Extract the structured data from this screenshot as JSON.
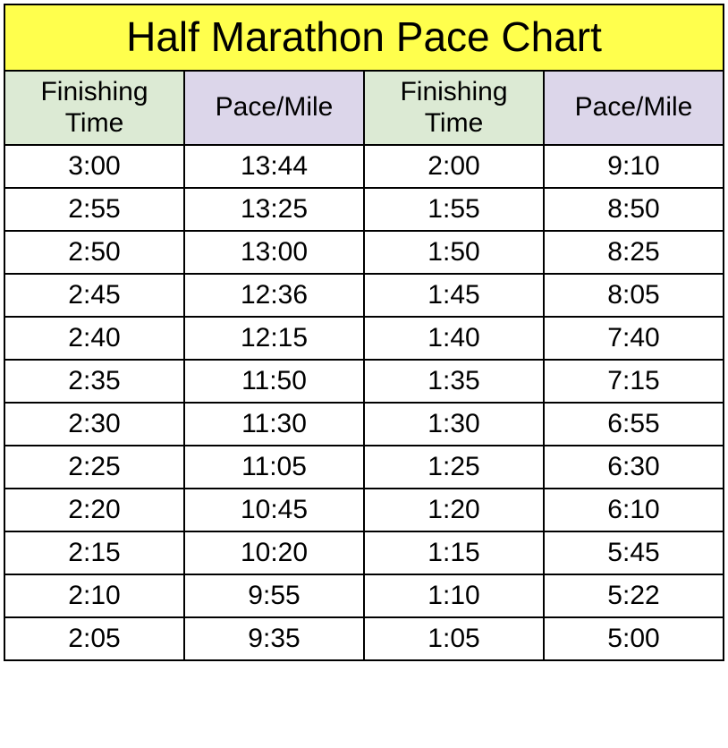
{
  "chart": {
    "type": "table",
    "title": "Half Marathon Pace Chart",
    "title_bg": "#ffff4d",
    "title_color": "#000000",
    "title_fontsize": 46,
    "border_color": "#000000",
    "background_color": "#ffffff",
    "header_fontsize": 30,
    "cell_fontsize": 30,
    "columns": [
      {
        "label": "Finishing\nTime",
        "bg": "#dcead4"
      },
      {
        "label": "Pace/Mile",
        "bg": "#dcd6ea"
      },
      {
        "label": "Finishing\nTime",
        "bg": "#dcead4"
      },
      {
        "label": "Pace/Mile",
        "bg": "#dcd6ea"
      }
    ],
    "rows": [
      [
        "3:00",
        "13:44",
        "2:00",
        "9:10"
      ],
      [
        "2:55",
        "13:25",
        "1:55",
        "8:50"
      ],
      [
        "2:50",
        "13:00",
        "1:50",
        "8:25"
      ],
      [
        "2:45",
        "12:36",
        "1:45",
        "8:05"
      ],
      [
        "2:40",
        "12:15",
        "1:40",
        "7:40"
      ],
      [
        "2:35",
        "11:50",
        "1:35",
        "7:15"
      ],
      [
        "2:30",
        "11:30",
        "1:30",
        "6:55"
      ],
      [
        "2:25",
        "11:05",
        "1:25",
        "6:30"
      ],
      [
        "2:20",
        "10:45",
        "1:20",
        "6:10"
      ],
      [
        "2:15",
        "10:20",
        "1:15",
        "5:45"
      ],
      [
        "2:10",
        "9:55",
        "1:10",
        "5:22"
      ],
      [
        "2:05",
        "9:35",
        "1:05",
        "5:00"
      ]
    ]
  }
}
